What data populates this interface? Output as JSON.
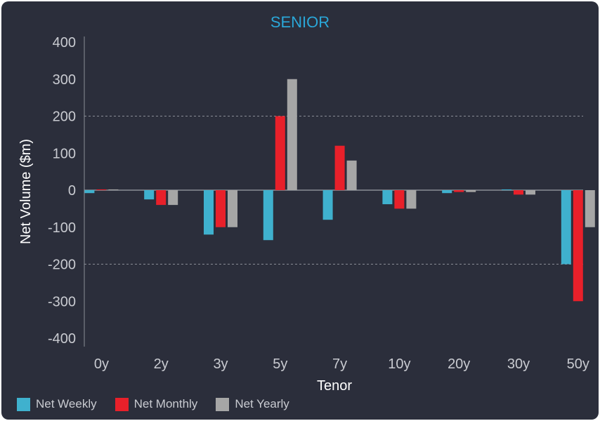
{
  "chart_data": {
    "type": "bar",
    "title": "SENIOR",
    "xlabel": "Tenor",
    "ylabel": "Net Volume ($m)",
    "categories": [
      "0y",
      "2y",
      "3y",
      "5y",
      "7y",
      "10y",
      "20y",
      "30y",
      "50y"
    ],
    "ylim": [
      -400,
      400
    ],
    "yticks": [
      400,
      300,
      200,
      100,
      0,
      -100,
      -200,
      -300,
      -400
    ],
    "gridlines": [
      200,
      -200
    ],
    "legend_position": "bottom-left",
    "series": [
      {
        "name": "Net Weekly",
        "color": "#3fb1ce",
        "values": [
          -8,
          -25,
          -120,
          -135,
          -80,
          -38,
          -8,
          2,
          -200
        ]
      },
      {
        "name": "Net Monthly",
        "color": "#e8202a",
        "values": [
          2,
          -40,
          -100,
          200,
          120,
          -50,
          -5,
          -12,
          -300
        ]
      },
      {
        "name": "Net Yearly",
        "color": "#a6a6a6",
        "values": [
          2,
          -40,
          -100,
          300,
          80,
          -50,
          -5,
          -12,
          -100
        ]
      }
    ]
  },
  "colors": {
    "background": "#2b2e3b",
    "title": "#2aa7d8",
    "text": "#c9cbd1",
    "axis": "#8a8d96"
  }
}
